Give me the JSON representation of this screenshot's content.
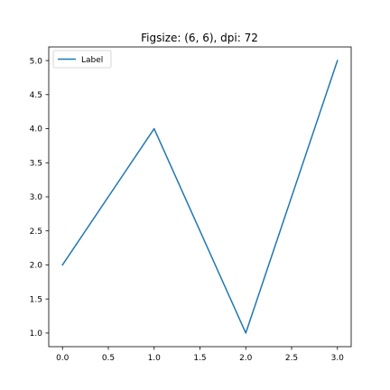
{
  "chart_data": {
    "type": "line",
    "title": "Figsize: (6, 6), dpi: 72",
    "xlabel": "",
    "ylabel": "",
    "xlim": [
      -0.15,
      3.15
    ],
    "ylim": [
      0.8,
      5.2
    ],
    "x_ticks": [
      0.0,
      0.5,
      1.0,
      1.5,
      2.0,
      2.5,
      3.0
    ],
    "x_tick_labels": [
      "0.0",
      "0.5",
      "1.0",
      "1.5",
      "2.0",
      "2.5",
      "3.0"
    ],
    "y_ticks": [
      1.0,
      1.5,
      2.0,
      2.5,
      3.0,
      3.5,
      4.0,
      4.5,
      5.0
    ],
    "y_tick_labels": [
      "1.0",
      "1.5",
      "2.0",
      "2.5",
      "3.0",
      "3.5",
      "4.0",
      "4.5",
      "5.0"
    ],
    "grid": false,
    "legend_position": "upper-left",
    "series": [
      {
        "name": "Label",
        "color": "#1f77b4",
        "x": [
          0,
          1,
          2,
          3
        ],
        "y": [
          2,
          4,
          1,
          5
        ]
      }
    ]
  }
}
